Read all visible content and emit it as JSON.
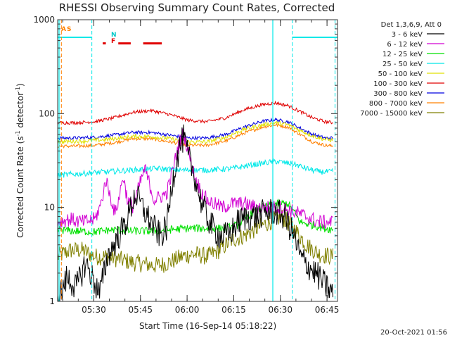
{
  "chart_data": {
    "type": "line",
    "title": "RHESSI Observing Summary Count Rates, Corrected",
    "xlabel": "Start Time (16-Sep-14 05:18:22)",
    "ylabel": "Corrected Count Rate (s",
    "ylabel_sup1": "-1",
    "ylabel_mid": " detector",
    "ylabel_sup2": "-1",
    "ylabel_end": ")",
    "yscale": "log",
    "ylim": [
      1,
      1000
    ],
    "xlim_minutes": [
      0,
      90
    ],
    "x_ticks": [
      {
        "label": "05:30",
        "minute": 11.63
      },
      {
        "label": "05:45",
        "minute": 26.63
      },
      {
        "label": "06:00",
        "minute": 41.63
      },
      {
        "label": "06:15",
        "minute": 56.63
      },
      {
        "label": "06:30",
        "minute": 71.63
      },
      {
        "label": "06:45",
        "minute": 86.63
      }
    ],
    "y_ticks": [
      {
        "label": "1",
        "value": 1
      },
      {
        "label": "10",
        "value": 10
      },
      {
        "label": "100",
        "value": 100
      },
      {
        "label": "1000",
        "value": 1000
      }
    ],
    "legend_title": "Det 1,3,6,9, Att 0",
    "legend_placement": "right",
    "series": [
      {
        "name": "3 - 6 keV",
        "color": "#000000",
        "x": [
          0,
          3,
          6,
          9,
          13.5,
          16,
          19,
          22,
          25,
          28,
          31,
          33,
          35,
          37,
          39,
          40.5,
          42,
          44,
          46,
          48,
          50,
          52,
          55,
          58,
          61,
          64,
          67,
          70,
          73,
          76,
          78,
          80,
          83,
          86,
          88.5
        ],
        "y": [
          1,
          1.8,
          1.4,
          2.6,
          1.2,
          3,
          4.5,
          7,
          14,
          9,
          6,
          5,
          6,
          20,
          42,
          55,
          35,
          22,
          12,
          8,
          6,
          5,
          5,
          7,
          8,
          8,
          9,
          9,
          8,
          5,
          3,
          2.5,
          2,
          1.5,
          1.2
        ]
      },
      {
        "name": "6 - 12 keV",
        "color": "#d200d2",
        "x": [
          0,
          4,
          8,
          12,
          14,
          15.5,
          17,
          18.5,
          20,
          21,
          22.5,
          24,
          26,
          28,
          29.5,
          31,
          33,
          35,
          37,
          39,
          40.5,
          42,
          44,
          46,
          48,
          50,
          53,
          56,
          60,
          64,
          68,
          72,
          76,
          80,
          84,
          88.5
        ],
        "y": [
          7,
          7.5,
          7,
          7.5,
          11,
          20,
          13,
          8.5,
          14,
          22,
          12,
          10,
          16,
          26,
          18,
          12,
          13,
          14,
          25,
          48,
          62,
          40,
          22,
          15,
          12,
          11,
          10,
          11,
          11,
          10,
          10,
          10,
          9,
          8,
          7,
          7
        ]
      },
      {
        "name": "12 - 25 keV",
        "color": "#00e000",
        "x": [
          0,
          6,
          12,
          18,
          24,
          30,
          36,
          42,
          48,
          54,
          58,
          62,
          66,
          70,
          74,
          76,
          78,
          82,
          86,
          88.5
        ],
        "y": [
          5.8,
          5.6,
          5.5,
          5.8,
          5.6,
          5.6,
          5.8,
          6,
          6,
          6,
          6.5,
          8.5,
          10,
          11,
          11,
          9,
          7,
          6.5,
          6,
          5.8
        ]
      },
      {
        "name": "25 - 50 keV",
        "color": "#00e8e8",
        "x": [
          0,
          8,
          16,
          24,
          32,
          40,
          48,
          56,
          64,
          70,
          76,
          80,
          84,
          88.5
        ],
        "y": [
          22,
          23,
          24,
          25,
          26,
          25,
          25,
          26,
          29,
          31,
          29,
          26,
          24,
          24
        ]
      },
      {
        "name": "50 - 100 keV",
        "color": "#e0e000",
        "x": [
          0,
          8,
          16,
          24,
          30,
          36,
          42,
          48,
          54,
          60,
          66,
          70,
          74,
          78,
          82,
          86,
          88.5
        ],
        "y": [
          50,
          51,
          53,
          57,
          57,
          54,
          50,
          50,
          56,
          68,
          76,
          80,
          76,
          66,
          58,
          53,
          52
        ]
      },
      {
        "name": "100 - 300 keV",
        "color": "#e00000",
        "x": [
          0,
          6,
          12,
          18,
          24,
          30,
          36,
          42,
          48,
          54,
          60,
          66,
          70,
          74,
          78,
          82,
          86,
          88.5
        ],
        "y": [
          80,
          80,
          82,
          90,
          103,
          108,
          98,
          85,
          82,
          90,
          110,
          125,
          130,
          122,
          105,
          90,
          82,
          80
        ]
      },
      {
        "name": "300 - 800 keV",
        "color": "#0000e0",
        "x": [
          0,
          6,
          12,
          18,
          24,
          30,
          36,
          42,
          48,
          54,
          60,
          66,
          70,
          74,
          78,
          82,
          86,
          88.5
        ],
        "y": [
          55,
          55,
          56,
          59,
          63,
          63,
          59,
          55,
          55,
          60,
          72,
          83,
          86,
          82,
          70,
          60,
          55,
          55
        ]
      },
      {
        "name": "800 - 7000 keV",
        "color": "#ff8000",
        "x": [
          0,
          6,
          12,
          18,
          24,
          30,
          36,
          42,
          48,
          54,
          60,
          66,
          70,
          74,
          78,
          82,
          86,
          88.5
        ],
        "y": [
          45,
          45,
          46,
          49,
          54,
          54,
          50,
          46,
          46,
          51,
          62,
          72,
          76,
          72,
          60,
          50,
          46,
          45
        ]
      },
      {
        "name": "7000 - 15000 keV",
        "color": "#808000",
        "x": [
          0,
          4,
          8,
          12,
          16,
          20,
          24,
          28,
          32,
          36,
          40,
          44,
          48,
          52,
          56,
          60,
          64,
          68,
          72,
          76,
          80,
          84,
          88.5
        ],
        "y": [
          3,
          3.5,
          3.5,
          3,
          3,
          2.8,
          2.6,
          2.5,
          2.4,
          2.6,
          3,
          3.2,
          3,
          3.5,
          4.5,
          5,
          6,
          7,
          8,
          6,
          4,
          3.2,
          3
        ]
      }
    ],
    "intervals": {
      "attenuator_label": "A",
      "saa_label": "S",
      "night_label": "N",
      "flare_label": "F",
      "night_segments_minutes": [
        [
          0,
          11
        ],
        [
          75.5,
          90
        ]
      ],
      "night_level": 650,
      "flare_segments_minutes": [
        [
          14.5,
          15.5
        ],
        [
          19.5,
          23.5
        ],
        [
          27.5,
          33.5
        ]
      ],
      "flare_level": 560,
      "night_boundaries_minutes": [
        11,
        75.5,
        89.2
      ],
      "saa_boundary_minute": 1.2,
      "night_color": "#00e8e8",
      "flare_color": "#e00000",
      "saa_color": "#ff8000"
    }
  },
  "footer_timestamp": "20-Oct-2021 01:56"
}
